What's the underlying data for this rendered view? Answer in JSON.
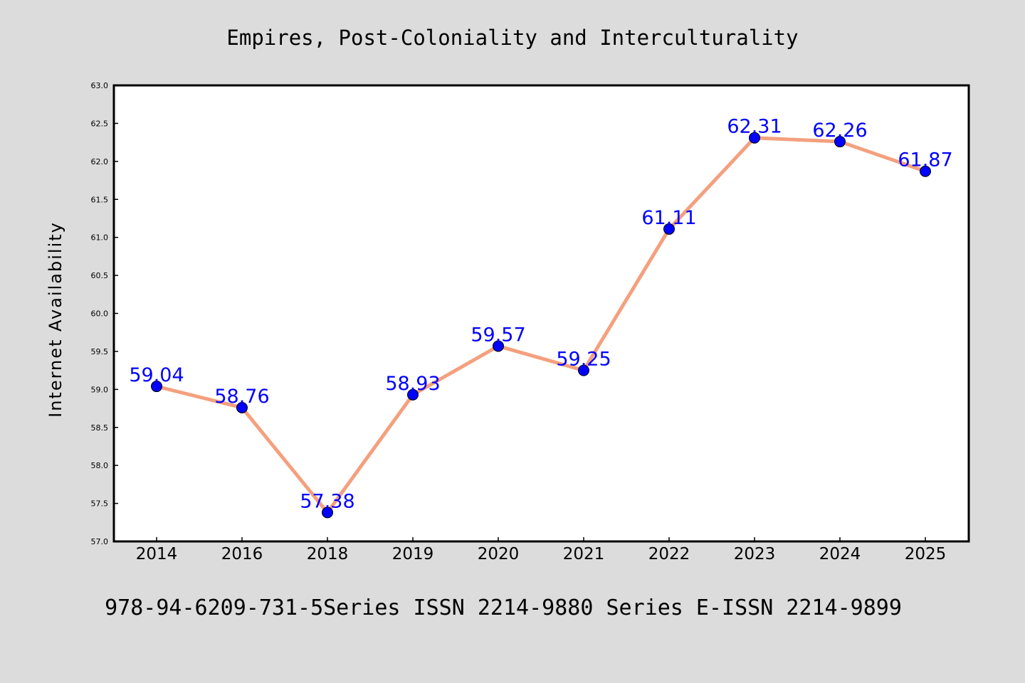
{
  "chart_data": {
    "type": "line",
    "title": "Empires, Post-Coloniality and Interculturality",
    "xlabel": "",
    "ylabel": "Internet Availability",
    "footer": "978-94-6209-731-5Series ISSN 2214-9880 Series E-ISSN 2214-9899",
    "categories": [
      "2014",
      "2016",
      "2018",
      "2019",
      "2020",
      "2021",
      "2022",
      "2023",
      "2024",
      "2025"
    ],
    "series": [
      {
        "values": [
          59.04,
          58.76,
          57.38,
          58.93,
          59.57,
          59.25,
          61.11,
          62.31,
          62.26,
          61.87
        ],
        "labels": [
          "59.04",
          "58.76",
          "57.38",
          "58.93",
          "59.57",
          "59.25",
          "61.11",
          "62.31",
          "62.26",
          "61.87"
        ],
        "line_color": "#f4a07e",
        "marker_color": "#0000ff",
        "label_color": "#0000ff"
      }
    ],
    "ylim": [
      57.0,
      63.0
    ],
    "yticks": [
      "57.0",
      "57.5",
      "58.0",
      "58.5",
      "59.0",
      "59.5",
      "60.0",
      "60.5",
      "61.0",
      "61.5",
      "62.0",
      "62.5",
      "63.0"
    ],
    "grid": false,
    "legend": "none",
    "background": "#dcdcdc",
    "plot_background": "#ffffff"
  }
}
